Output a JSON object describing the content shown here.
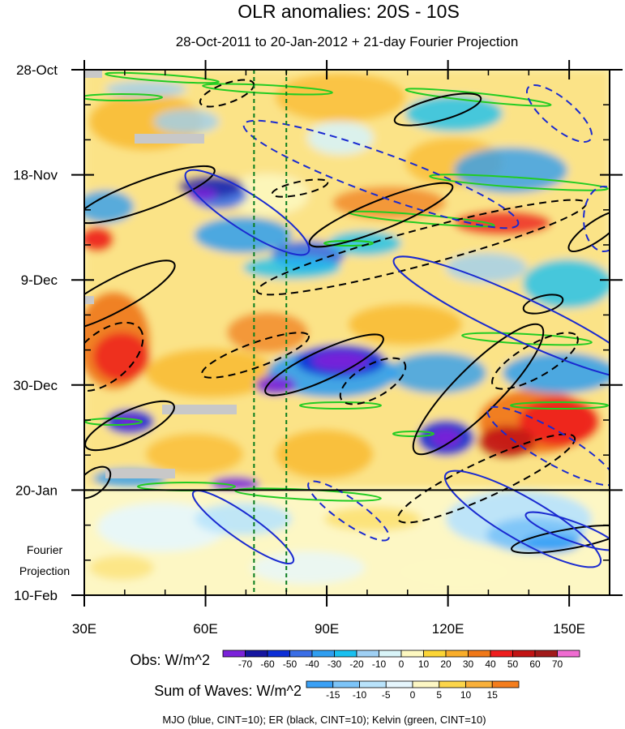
{
  "chart_data": {
    "type": "heatmap",
    "title": "OLR anomalies: 20S - 10S",
    "subtitle": "28-Oct-2011 to 20-Jan-2012 + 21-day Fourier Projection",
    "xlabel": "",
    "ylabel": "",
    "x_range": [
      30,
      160
    ],
    "x_ticks": [
      {
        "value": 30,
        "label": "30E"
      },
      {
        "value": 60,
        "label": "60E"
      },
      {
        "value": 90,
        "label": "90E"
      },
      {
        "value": 120,
        "label": "120E"
      },
      {
        "value": 150,
        "label": "150E"
      }
    ],
    "y_range_days": [
      0,
      105
    ],
    "y_ticks": [
      {
        "day": 0,
        "label": "28-Oct"
      },
      {
        "day": 21,
        "label": "18-Nov"
      },
      {
        "day": 42,
        "label": "9-Dec"
      },
      {
        "day": 63,
        "label": "30-Dec"
      },
      {
        "day": 84,
        "label": "20-Jan"
      },
      {
        "day": 105,
        "label": "10-Feb"
      }
    ],
    "projection_start_day": 84,
    "projection_label": [
      "Fourier",
      "Projection"
    ],
    "reference_lines_lon": [
      72,
      80
    ],
    "obs_colorbar": {
      "label": "Obs: W/m^2",
      "levels": [
        -70,
        -60,
        -50,
        -40,
        -30,
        -20,
        -10,
        0,
        10,
        20,
        30,
        40,
        50,
        60,
        70
      ],
      "colors": [
        "#7a22d9",
        "#1515a0",
        "#0c2ed6",
        "#3a6ee6",
        "#2f9ef0",
        "#19c0f0",
        "#9fd0f4",
        "#d8f4f8",
        "#fdf8c0",
        "#fcd535",
        "#f9ad2a",
        "#f07818",
        "#ee1d1d",
        "#c21414",
        "#a11a1a",
        "#ef6cd1"
      ]
    },
    "waves_colorbar": {
      "label": "Sum of Waves: W/m^2",
      "levels": [
        -15,
        -10,
        -5,
        0,
        5,
        10,
        15
      ],
      "colors": [
        "#3aa0f5",
        "#7cc4f8",
        "#b9e3fb",
        "#e6f6fd",
        "#fdf7c4",
        "#fcd54a",
        "#f9b03a",
        "#f47d1d"
      ]
    },
    "contours": [
      {
        "name": "MJO",
        "color": "blue",
        "cint": 10
      },
      {
        "name": "ER",
        "color": "black",
        "cint": 10
      },
      {
        "name": "Kelvin",
        "color": "green",
        "cint": 10
      }
    ],
    "footnote": "MJO (blue, CINT=10); ER (black, CINT=10); Kelvin (green, CINT=10)"
  }
}
